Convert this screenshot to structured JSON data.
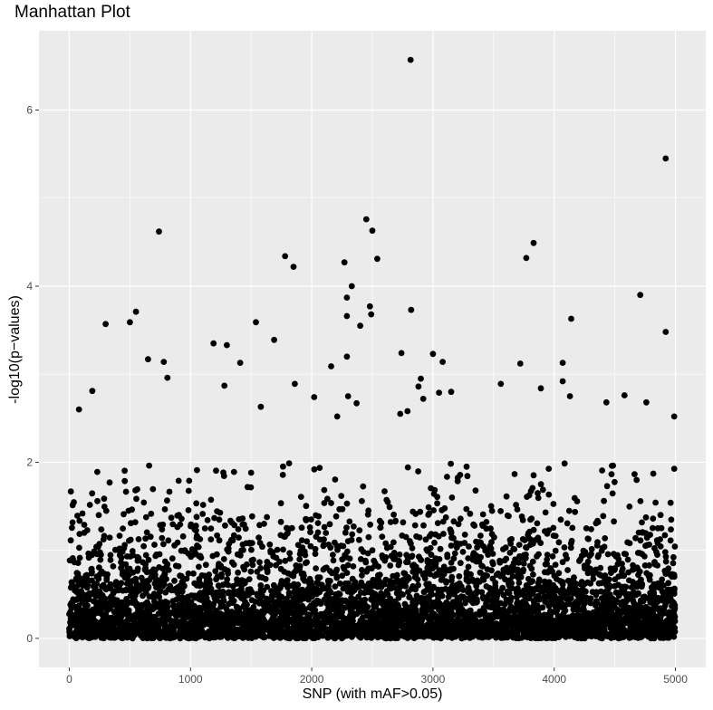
{
  "chart_data": {
    "type": "scatter",
    "title": "Manhattan Plot",
    "xlabel": "SNP (with mAF>0.05)",
    "ylabel": "-log10(p−values)",
    "xlim": [
      -250,
      5250
    ],
    "ylim": [
      -0.33,
      6.9
    ],
    "x_ticks": [
      0,
      1000,
      2000,
      3000,
      4000,
      5000
    ],
    "y_ticks": [
      0,
      2,
      4,
      6
    ],
    "grid": true,
    "background": "#ebebeb",
    "gridline_color": "#ffffff",
    "point_color": "#000000",
    "n_points": 5000,
    "notable_points": [
      {
        "x": 2815,
        "y": 6.57
      },
      {
        "x": 4920,
        "y": 5.45
      },
      {
        "x": 2450,
        "y": 4.76
      },
      {
        "x": 740,
        "y": 4.62
      },
      {
        "x": 2500,
        "y": 4.63
      },
      {
        "x": 3830,
        "y": 4.49
      },
      {
        "x": 1780,
        "y": 4.34
      },
      {
        "x": 3770,
        "y": 4.32
      },
      {
        "x": 2540,
        "y": 4.31
      },
      {
        "x": 2270,
        "y": 4.27
      },
      {
        "x": 1850,
        "y": 4.22
      },
      {
        "x": 2330,
        "y": 4.0
      },
      {
        "x": 4710,
        "y": 3.9
      },
      {
        "x": 2290,
        "y": 3.87
      },
      {
        "x": 2480,
        "y": 3.77
      },
      {
        "x": 2820,
        "y": 3.73
      },
      {
        "x": 550,
        "y": 3.71
      },
      {
        "x": 2290,
        "y": 3.66
      },
      {
        "x": 2490,
        "y": 3.68
      },
      {
        "x": 4140,
        "y": 3.63
      },
      {
        "x": 500,
        "y": 3.59
      },
      {
        "x": 1540,
        "y": 3.59
      },
      {
        "x": 300,
        "y": 3.57
      },
      {
        "x": 2400,
        "y": 3.55
      },
      {
        "x": 4920,
        "y": 3.48
      },
      {
        "x": 1690,
        "y": 3.39
      },
      {
        "x": 1190,
        "y": 3.35
      },
      {
        "x": 1300,
        "y": 3.33
      },
      {
        "x": 2740,
        "y": 3.24
      },
      {
        "x": 3000,
        "y": 3.23
      },
      {
        "x": 2290,
        "y": 3.2
      },
      {
        "x": 650,
        "y": 3.17
      },
      {
        "x": 780,
        "y": 3.14
      },
      {
        "x": 1410,
        "y": 3.13
      },
      {
        "x": 3080,
        "y": 3.14
      },
      {
        "x": 3720,
        "y": 3.12
      },
      {
        "x": 4070,
        "y": 3.13
      },
      {
        "x": 2160,
        "y": 3.09
      },
      {
        "x": 810,
        "y": 2.96
      },
      {
        "x": 2900,
        "y": 2.95
      },
      {
        "x": 4070,
        "y": 2.92
      },
      {
        "x": 3560,
        "y": 2.89
      },
      {
        "x": 1860,
        "y": 2.89
      },
      {
        "x": 1280,
        "y": 2.87
      },
      {
        "x": 2880,
        "y": 2.86
      },
      {
        "x": 3890,
        "y": 2.84
      },
      {
        "x": 190,
        "y": 2.81
      },
      {
        "x": 3050,
        "y": 2.79
      },
      {
        "x": 3150,
        "y": 2.8
      },
      {
        "x": 4580,
        "y": 2.76
      },
      {
        "x": 2300,
        "y": 2.75
      },
      {
        "x": 2020,
        "y": 2.74
      },
      {
        "x": 4130,
        "y": 2.75
      },
      {
        "x": 2920,
        "y": 2.72
      },
      {
        "x": 4430,
        "y": 2.68
      },
      {
        "x": 4760,
        "y": 2.68
      },
      {
        "x": 2370,
        "y": 2.67
      },
      {
        "x": 1580,
        "y": 2.63
      },
      {
        "x": 80,
        "y": 2.6
      },
      {
        "x": 2790,
        "y": 2.58
      },
      {
        "x": 4990,
        "y": 2.52
      },
      {
        "x": 2730,
        "y": 2.55
      },
      {
        "x": 2210,
        "y": 2.52
      }
    ]
  }
}
